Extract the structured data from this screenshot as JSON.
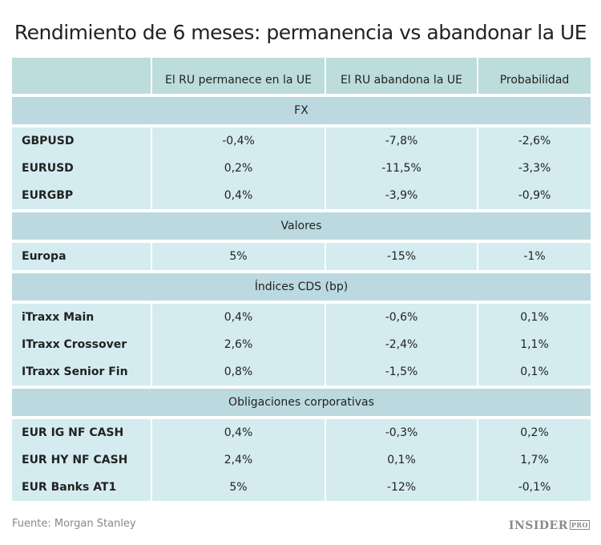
{
  "title": "Rendimiento de 6 meses: permanencia vs abandonar la UE",
  "source": "Fuente: Morgan Stanley",
  "logo": {
    "main": "INSIDER",
    "sup": "PRO"
  },
  "colors": {
    "header": "#bddcdc",
    "section": "#bcd9e0",
    "cell": "#d4ecf0"
  },
  "chart_data": {
    "type": "table",
    "columns": [
      "",
      "El RU permanece en la UE",
      "El RU abandona la UE",
      "Probabilidad"
    ],
    "sections": [
      {
        "name": "FX",
        "rows": [
          [
            "GBPUSD",
            "-0,4%",
            "-7,8%",
            "-2,6%"
          ],
          [
            "EURUSD",
            "0,2%",
            "-11,5%",
            "-3,3%"
          ],
          [
            "EURGBP",
            "0,4%",
            "-3,9%",
            "-0,9%"
          ]
        ]
      },
      {
        "name": "Valores",
        "rows": [
          [
            "Europa",
            "5%",
            "-15%",
            "-1%"
          ]
        ]
      },
      {
        "name": "Índices CDS (bp)",
        "rows": [
          [
            "iTraxx Main",
            "0,4%",
            "-0,6%",
            "0,1%"
          ],
          [
            "ITraxx Crossover",
            "2,6%",
            "-2,4%",
            "1,1%"
          ],
          [
            "ITraxx Senior Fin",
            "0,8%",
            "-1,5%",
            "0,1%"
          ]
        ]
      },
      {
        "name": "Obligaciones corporativas",
        "rows": [
          [
            "EUR IG NF CASH",
            "0,4%",
            "-0,3%",
            "0,2%"
          ],
          [
            "EUR HY NF CASH",
            "2,4%",
            "0,1%",
            "1,7%"
          ],
          [
            "EUR Banks AT1",
            "5%",
            "-12%",
            "-0,1%"
          ]
        ]
      }
    ]
  }
}
